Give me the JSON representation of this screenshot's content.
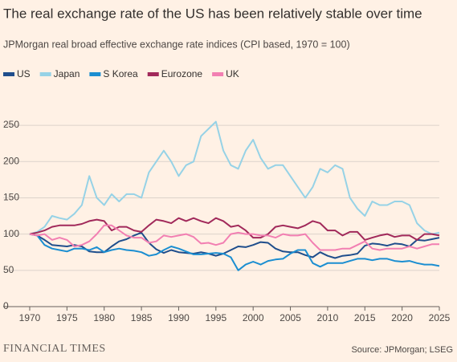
{
  "chart_data": {
    "type": "line",
    "title": "The real exchange rate of the US has been relatively stable over time",
    "subtitle": "JPMorgan real broad effective exchange rate indices (CPI based, 1970 = 100)",
    "source": "Source: JPMorgan; LSEG",
    "brand": "FINANCIAL TIMES",
    "x": [
      1970,
      1971,
      1972,
      1973,
      1974,
      1975,
      1976,
      1977,
      1978,
      1979,
      1980,
      1981,
      1982,
      1983,
      1984,
      1985,
      1986,
      1987,
      1988,
      1989,
      1990,
      1991,
      1992,
      1993,
      1994,
      1995,
      1996,
      1997,
      1998,
      1999,
      2000,
      2001,
      2002,
      2003,
      2004,
      2005,
      2006,
      2007,
      2008,
      2009,
      2010,
      2011,
      2012,
      2013,
      2014,
      2015,
      2016,
      2017,
      2018,
      2019,
      2020,
      2021,
      2022,
      2023,
      2024,
      2025
    ],
    "series": [
      {
        "name": "US",
        "color": "#1f4e8c",
        "values": [
          100,
          98,
          92,
          85,
          84,
          83,
          85,
          83,
          76,
          75,
          75,
          83,
          90,
          93,
          98,
          102,
          88,
          79,
          74,
          78,
          75,
          74,
          73,
          75,
          73,
          70,
          73,
          78,
          83,
          82,
          85,
          89,
          88,
          80,
          76,
          75,
          75,
          71,
          68,
          75,
          70,
          67,
          70,
          71,
          73,
          84,
          87,
          86,
          84,
          87,
          86,
          83,
          92,
          91,
          93,
          95
        ]
      },
      {
        "name": "Japan",
        "color": "#96d2e6",
        "values": [
          100,
          103,
          110,
          125,
          122,
          120,
          128,
          140,
          180,
          150,
          140,
          155,
          145,
          155,
          155,
          150,
          185,
          200,
          215,
          200,
          180,
          195,
          200,
          235,
          245,
          255,
          215,
          195,
          190,
          215,
          230,
          205,
          190,
          195,
          195,
          180,
          165,
          150,
          165,
          190,
          185,
          195,
          190,
          150,
          135,
          125,
          145,
          140,
          140,
          145,
          145,
          140,
          115,
          105,
          100,
          102
        ]
      },
      {
        "name": "S Korea",
        "color": "#1b8ed1",
        "values": [
          100,
          98,
          85,
          80,
          78,
          76,
          80,
          80,
          78,
          82,
          75,
          78,
          80,
          78,
          77,
          75,
          70,
          72,
          78,
          83,
          80,
          76,
          72,
          72,
          73,
          74,
          73,
          68,
          50,
          58,
          62,
          58,
          63,
          65,
          66,
          73,
          78,
          78,
          60,
          55,
          60,
          60,
          60,
          63,
          66,
          66,
          64,
          66,
          66,
          63,
          62,
          63,
          60,
          58,
          58,
          56
        ]
      },
      {
        "name": "Eurozone",
        "color": "#a1295a",
        "values": [
          100,
          102,
          105,
          110,
          112,
          112,
          112,
          114,
          118,
          120,
          118,
          105,
          110,
          110,
          105,
          103,
          112,
          120,
          118,
          115,
          122,
          118,
          122,
          118,
          115,
          122,
          118,
          110,
          112,
          105,
          95,
          95,
          100,
          110,
          112,
          110,
          108,
          112,
          118,
          115,
          105,
          105,
          98,
          103,
          103,
          92,
          95,
          98,
          100,
          96,
          98,
          98,
          92,
          100,
          100,
          98
        ]
      },
      {
        "name": "UK",
        "color": "#f27fb2",
        "values": [
          100,
          98,
          100,
          92,
          95,
          92,
          83,
          85,
          90,
          100,
          112,
          112,
          105,
          98,
          95,
          95,
          88,
          90,
          98,
          96,
          98,
          100,
          96,
          87,
          88,
          85,
          88,
          100,
          102,
          100,
          100,
          98,
          98,
          95,
          100,
          98,
          98,
          100,
          88,
          78,
          78,
          78,
          80,
          80,
          85,
          90,
          80,
          78,
          80,
          80,
          80,
          83,
          80,
          83,
          86,
          86
        ]
      }
    ],
    "xlim": [
      1970,
      2025
    ],
    "xticks": [
      1970,
      1975,
      1980,
      1985,
      1990,
      1995,
      2000,
      2005,
      2010,
      2015,
      2020,
      2025
    ],
    "ylim": [
      0,
      270
    ],
    "yticks": [
      0,
      50,
      100,
      150,
      200,
      250
    ],
    "grid": true
  }
}
